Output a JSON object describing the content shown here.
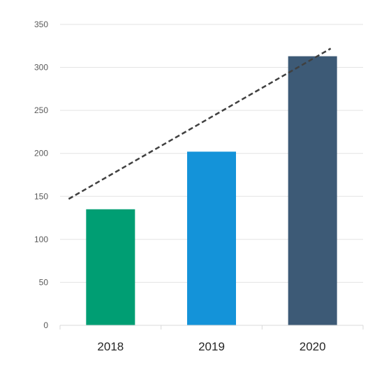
{
  "chart_data": {
    "type": "bar",
    "categories": [
      "2018",
      "2019",
      "2020"
    ],
    "values": [
      135,
      202,
      313
    ],
    "bar_colors": [
      "#009E73",
      "#1493D9",
      "#3D5A76"
    ],
    "title": "",
    "xlabel": "",
    "ylabel": "",
    "ylim": [
      0,
      350
    ],
    "y_ticks": [
      0,
      50,
      100,
      150,
      200,
      250,
      300,
      350
    ],
    "y_tick_labels": [
      "0",
      "50",
      "100",
      "150",
      "200",
      "250",
      "300",
      "350"
    ],
    "grid": true,
    "legend": "none",
    "trendline": {
      "type": "linear",
      "style": "dashed",
      "color": "#404040",
      "start": {
        "x": "2018",
        "y": 147
      },
      "end": {
        "x": "2020",
        "y": 322
      }
    }
  },
  "colors": {
    "gridline": "#E3E3E3",
    "axis": "#D9D9D9",
    "tick_text": "#595959",
    "category_text": "#262626"
  }
}
